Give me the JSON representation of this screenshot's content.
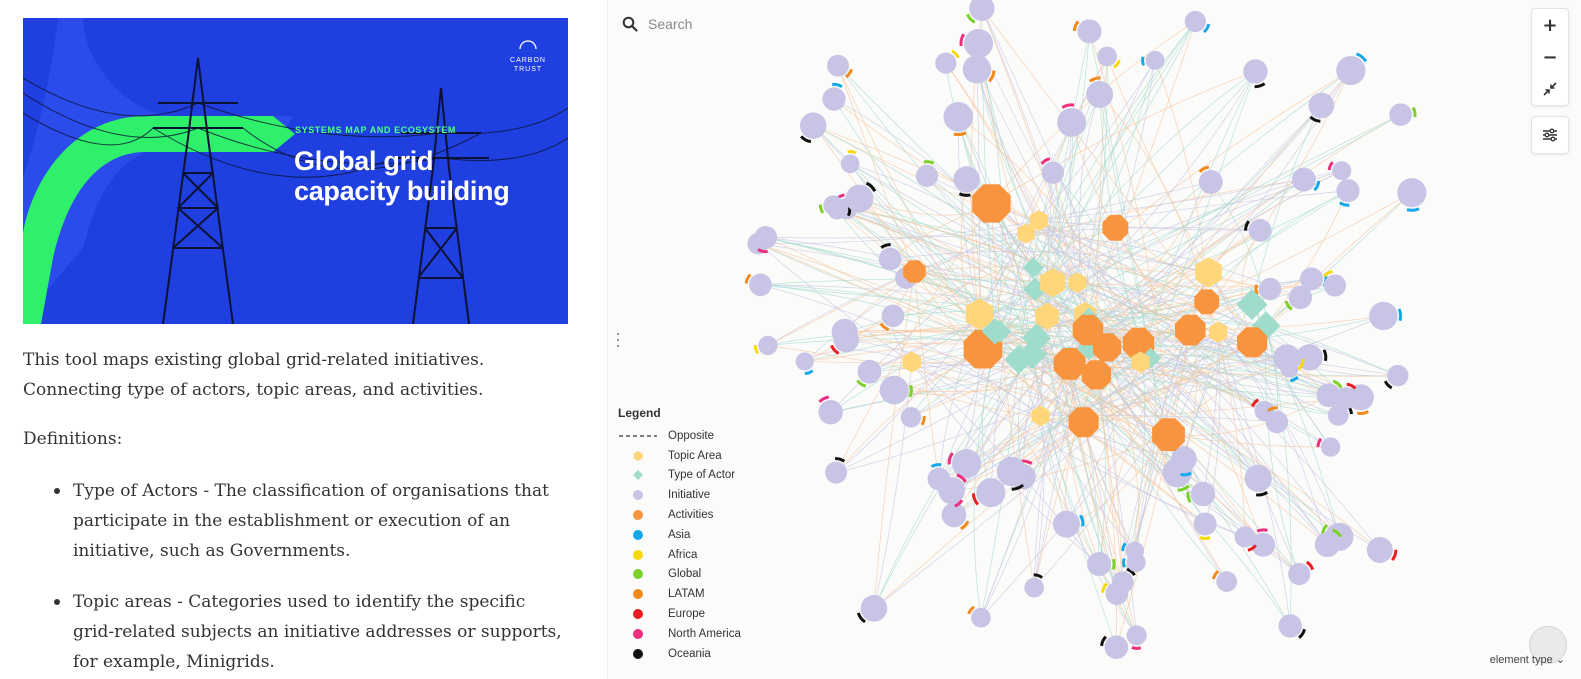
{
  "hero": {
    "kicker": "SYSTEMS MAP AND ECOSYSTEM",
    "title_line1": "Global grid",
    "title_line2": "capacity building",
    "logo_line1": "CARBON",
    "logo_line2": "TRUST",
    "colors": {
      "background": "#1f3fe0",
      "arrow": "#2ef06a",
      "kicker": "#4dff88"
    }
  },
  "intro": "This tool maps existing global grid-related initiatives. Connecting type of actors, topic areas, and activities.",
  "definitions_label": "Definitions:",
  "definitions": [
    {
      "text": "Type of Actors - The classification of organisations that participate in the establishment or execution of an initiative, such as Governments."
    },
    {
      "text": "Topic areas - Categories used to identify the specific grid-related subjects an initiative addresses or supports, for example, Minigrids."
    }
  ],
  "graph": {
    "search_placeholder": "Search",
    "legend_title": "Legend",
    "legend": [
      {
        "label": "Opposite",
        "shape": "dashed-line",
        "color": "#555555"
      },
      {
        "label": "Topic Area",
        "shape": "hexagon",
        "color": "#ffd77a"
      },
      {
        "label": "Type of Actor",
        "shape": "diamond",
        "color": "#9fdccc"
      },
      {
        "label": "Initiative",
        "shape": "circle",
        "color": "#c7c4e6"
      },
      {
        "label": "Activities",
        "shape": "circle",
        "color": "#f7943d"
      },
      {
        "label": "Asia",
        "shape": "circle",
        "color": "#15a8e8"
      },
      {
        "label": "Africa",
        "shape": "circle",
        "color": "#f7d90a"
      },
      {
        "label": "Global",
        "shape": "circle",
        "color": "#7bd12a"
      },
      {
        "label": "LATAM",
        "shape": "circle",
        "color": "#f08a1c"
      },
      {
        "label": "Europe",
        "shape": "circle",
        "color": "#ec1c24"
      },
      {
        "label": "North America",
        "shape": "circle",
        "color": "#ec2f7f"
      },
      {
        "label": "Oceania",
        "shape": "circle",
        "color": "#111111"
      }
    ],
    "zoom_in_label": "+",
    "zoom_out_label": "−",
    "element_type_label": "element type ⌄",
    "colors": {
      "edge_initiative": "#c9c6e3",
      "edge_activity": "#f5c79e",
      "edge_actor": "#a8dccf"
    }
  }
}
